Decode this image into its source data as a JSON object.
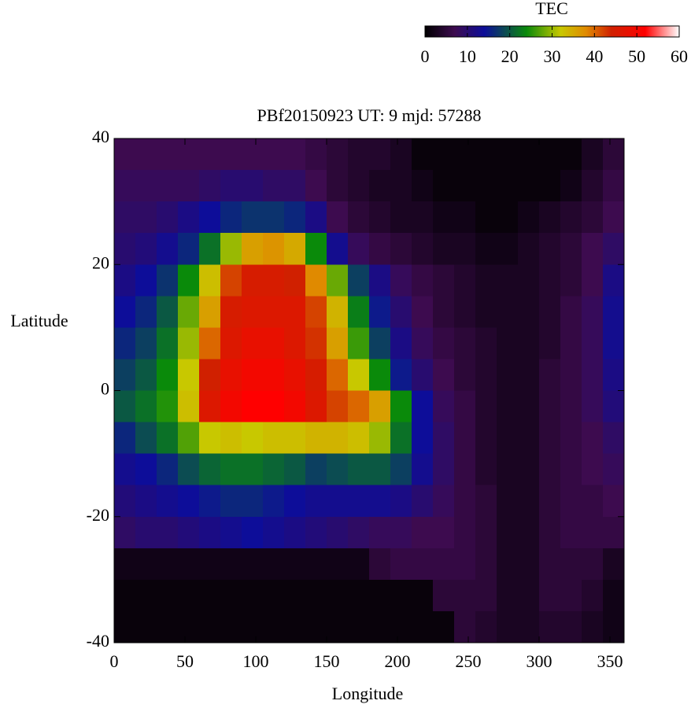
{
  "chart_data": {
    "type": "heatmap",
    "title": "PBf20150923  UT: 9  mjd: 57288",
    "xlabel": "Longitude",
    "ylabel": "Latitude",
    "colorbar_label": "TEC",
    "x": [
      7.5,
      22.5,
      37.5,
      52.5,
      67.5,
      82.5,
      97.5,
      112.5,
      127.5,
      142.5,
      157.5,
      172.5,
      187.5,
      202.5,
      217.5,
      232.5,
      247.5,
      262.5,
      277.5,
      292.5,
      307.5,
      322.5,
      337.5,
      352.5
    ],
    "y": [
      37.5,
      32.5,
      27.5,
      22.5,
      17.5,
      12.5,
      7.5,
      2.5,
      -2.5,
      -7.5,
      -12.5,
      -17.5,
      -22.5,
      -27.5,
      -32.5,
      -37.5
    ],
    "values": [
      [
        7,
        7,
        7,
        7,
        7,
        7,
        7,
        7,
        7,
        6,
        5,
        4,
        4,
        3,
        1,
        1,
        1,
        1,
        1,
        1,
        1,
        1,
        3,
        5
      ],
      [
        8,
        8,
        8,
        8,
        9,
        10,
        10,
        9,
        9,
        7,
        5,
        4,
        3,
        3,
        2,
        1,
        1,
        1,
        1,
        1,
        1,
        2,
        4,
        6
      ],
      [
        9,
        9,
        10,
        12,
        14,
        16,
        17,
        17,
        16,
        12,
        7,
        5,
        4,
        3,
        3,
        2,
        2,
        1,
        1,
        2,
        3,
        4,
        5,
        7
      ],
      [
        10,
        11,
        13,
        16,
        22,
        30,
        36,
        37,
        35,
        24,
        13,
        8,
        6,
        5,
        4,
        3,
        3,
        2,
        2,
        3,
        4,
        5,
        7,
        9
      ],
      [
        12,
        14,
        17,
        24,
        33,
        42,
        45,
        45,
        44,
        38,
        28,
        18,
        12,
        8,
        6,
        5,
        4,
        3,
        3,
        3,
        4,
        5,
        7,
        12
      ],
      [
        14,
        16,
        20,
        28,
        36,
        45,
        46,
        46,
        46,
        42,
        34,
        23,
        15,
        10,
        7,
        5,
        4,
        3,
        3,
        3,
        4,
        6,
        8,
        13
      ],
      [
        16,
        18,
        22,
        30,
        40,
        46,
        48,
        48,
        46,
        43,
        36,
        26,
        18,
        12,
        8,
        6,
        5,
        4,
        3,
        3,
        4,
        6,
        8,
        13
      ],
      [
        18,
        20,
        24,
        32,
        44,
        48,
        50,
        50,
        48,
        45,
        40,
        32,
        24,
        15,
        10,
        7,
        5,
        4,
        3,
        3,
        5,
        6,
        8,
        12
      ],
      [
        20,
        22,
        25,
        33,
        46,
        50,
        52,
        52,
        50,
        46,
        42,
        40,
        36,
        24,
        14,
        8,
        6,
        4,
        3,
        3,
        5,
        6,
        8,
        11
      ],
      [
        16,
        19,
        22,
        27,
        32,
        33,
        32,
        33,
        33,
        34,
        34,
        33,
        30,
        22,
        14,
        9,
        6,
        4,
        3,
        3,
        5,
        6,
        7,
        9
      ],
      [
        13,
        14,
        16,
        19,
        21,
        22,
        22,
        21,
        20,
        18,
        19,
        20,
        20,
        18,
        13,
        9,
        6,
        4,
        3,
        3,
        5,
        6,
        7,
        8
      ],
      [
        11,
        12,
        13,
        14,
        15,
        16,
        16,
        15,
        14,
        13,
        13,
        13,
        13,
        12,
        10,
        8,
        6,
        5,
        3,
        3,
        5,
        6,
        6,
        7
      ],
      [
        9,
        10,
        10,
        11,
        12,
        13,
        14,
        13,
        12,
        11,
        10,
        9,
        8,
        8,
        7,
        7,
        6,
        5,
        3,
        3,
        5,
        6,
        6,
        6
      ],
      [
        2,
        2,
        2,
        2,
        2,
        2,
        2,
        2,
        2,
        2,
        2,
        2,
        5,
        6,
        6,
        6,
        6,
        5,
        3,
        3,
        5,
        5,
        5,
        3
      ],
      [
        1,
        1,
        1,
        1,
        1,
        1,
        1,
        1,
        1,
        1,
        1,
        1,
        1,
        1,
        1,
        5,
        5,
        5,
        3,
        3,
        5,
        5,
        4,
        2
      ],
      [
        1,
        1,
        1,
        1,
        1,
        1,
        1,
        1,
        1,
        1,
        1,
        1,
        1,
        1,
        1,
        1,
        5,
        4,
        3,
        3,
        4,
        4,
        3,
        2
      ]
    ],
    "xlim": [
      0,
      360
    ],
    "xticks": [
      0,
      50,
      100,
      150,
      200,
      250,
      300,
      350
    ],
    "ylim": [
      -40,
      40
    ],
    "yticks": [
      -40,
      -20,
      0,
      20,
      40
    ],
    "zlim": [
      0,
      60
    ],
    "zticks": [
      0,
      10,
      20,
      30,
      40,
      50,
      60
    ],
    "colorscale": [
      [
        0,
        "#000000"
      ],
      [
        7,
        "#3d0b4f"
      ],
      [
        14,
        "#0d0d99"
      ],
      [
        24,
        "#0a8a0a"
      ],
      [
        32,
        "#c8c800"
      ],
      [
        38,
        "#e08a00"
      ],
      [
        44,
        "#d02000"
      ],
      [
        52,
        "#ff0000"
      ],
      [
        60,
        "#ffffff"
      ]
    ]
  }
}
